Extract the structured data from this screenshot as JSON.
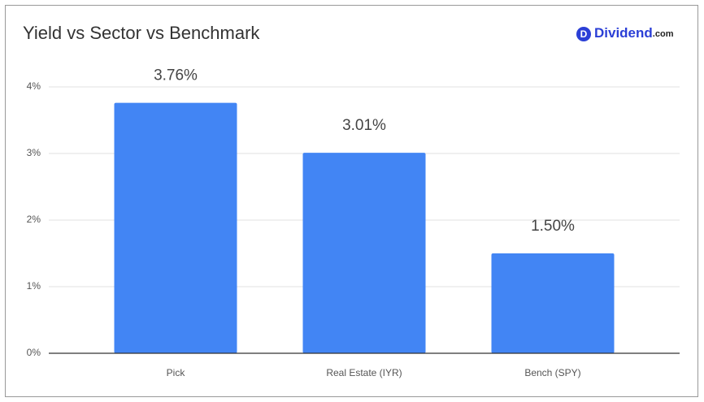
{
  "chart_data": {
    "type": "bar",
    "title": "Yield vs Sector vs Benchmark",
    "logo": {
      "icon": "D",
      "name": "Dividend",
      "suffix": ".com"
    },
    "categories": [
      "Pick",
      "Real Estate (IYR)",
      "Bench (SPY)"
    ],
    "values": [
      3.76,
      3.01,
      1.5
    ],
    "value_labels": [
      "3.76%",
      "3.01%",
      "1.50%"
    ],
    "color": "#4285f4",
    "ylim": [
      0,
      4
    ],
    "yticks": [
      {
        "value": 0,
        "label": "0%"
      },
      {
        "value": 1,
        "label": "1%"
      },
      {
        "value": 2,
        "label": "2%"
      },
      {
        "value": 3,
        "label": "3%"
      },
      {
        "value": 4,
        "label": "4%"
      }
    ],
    "grid": true
  }
}
